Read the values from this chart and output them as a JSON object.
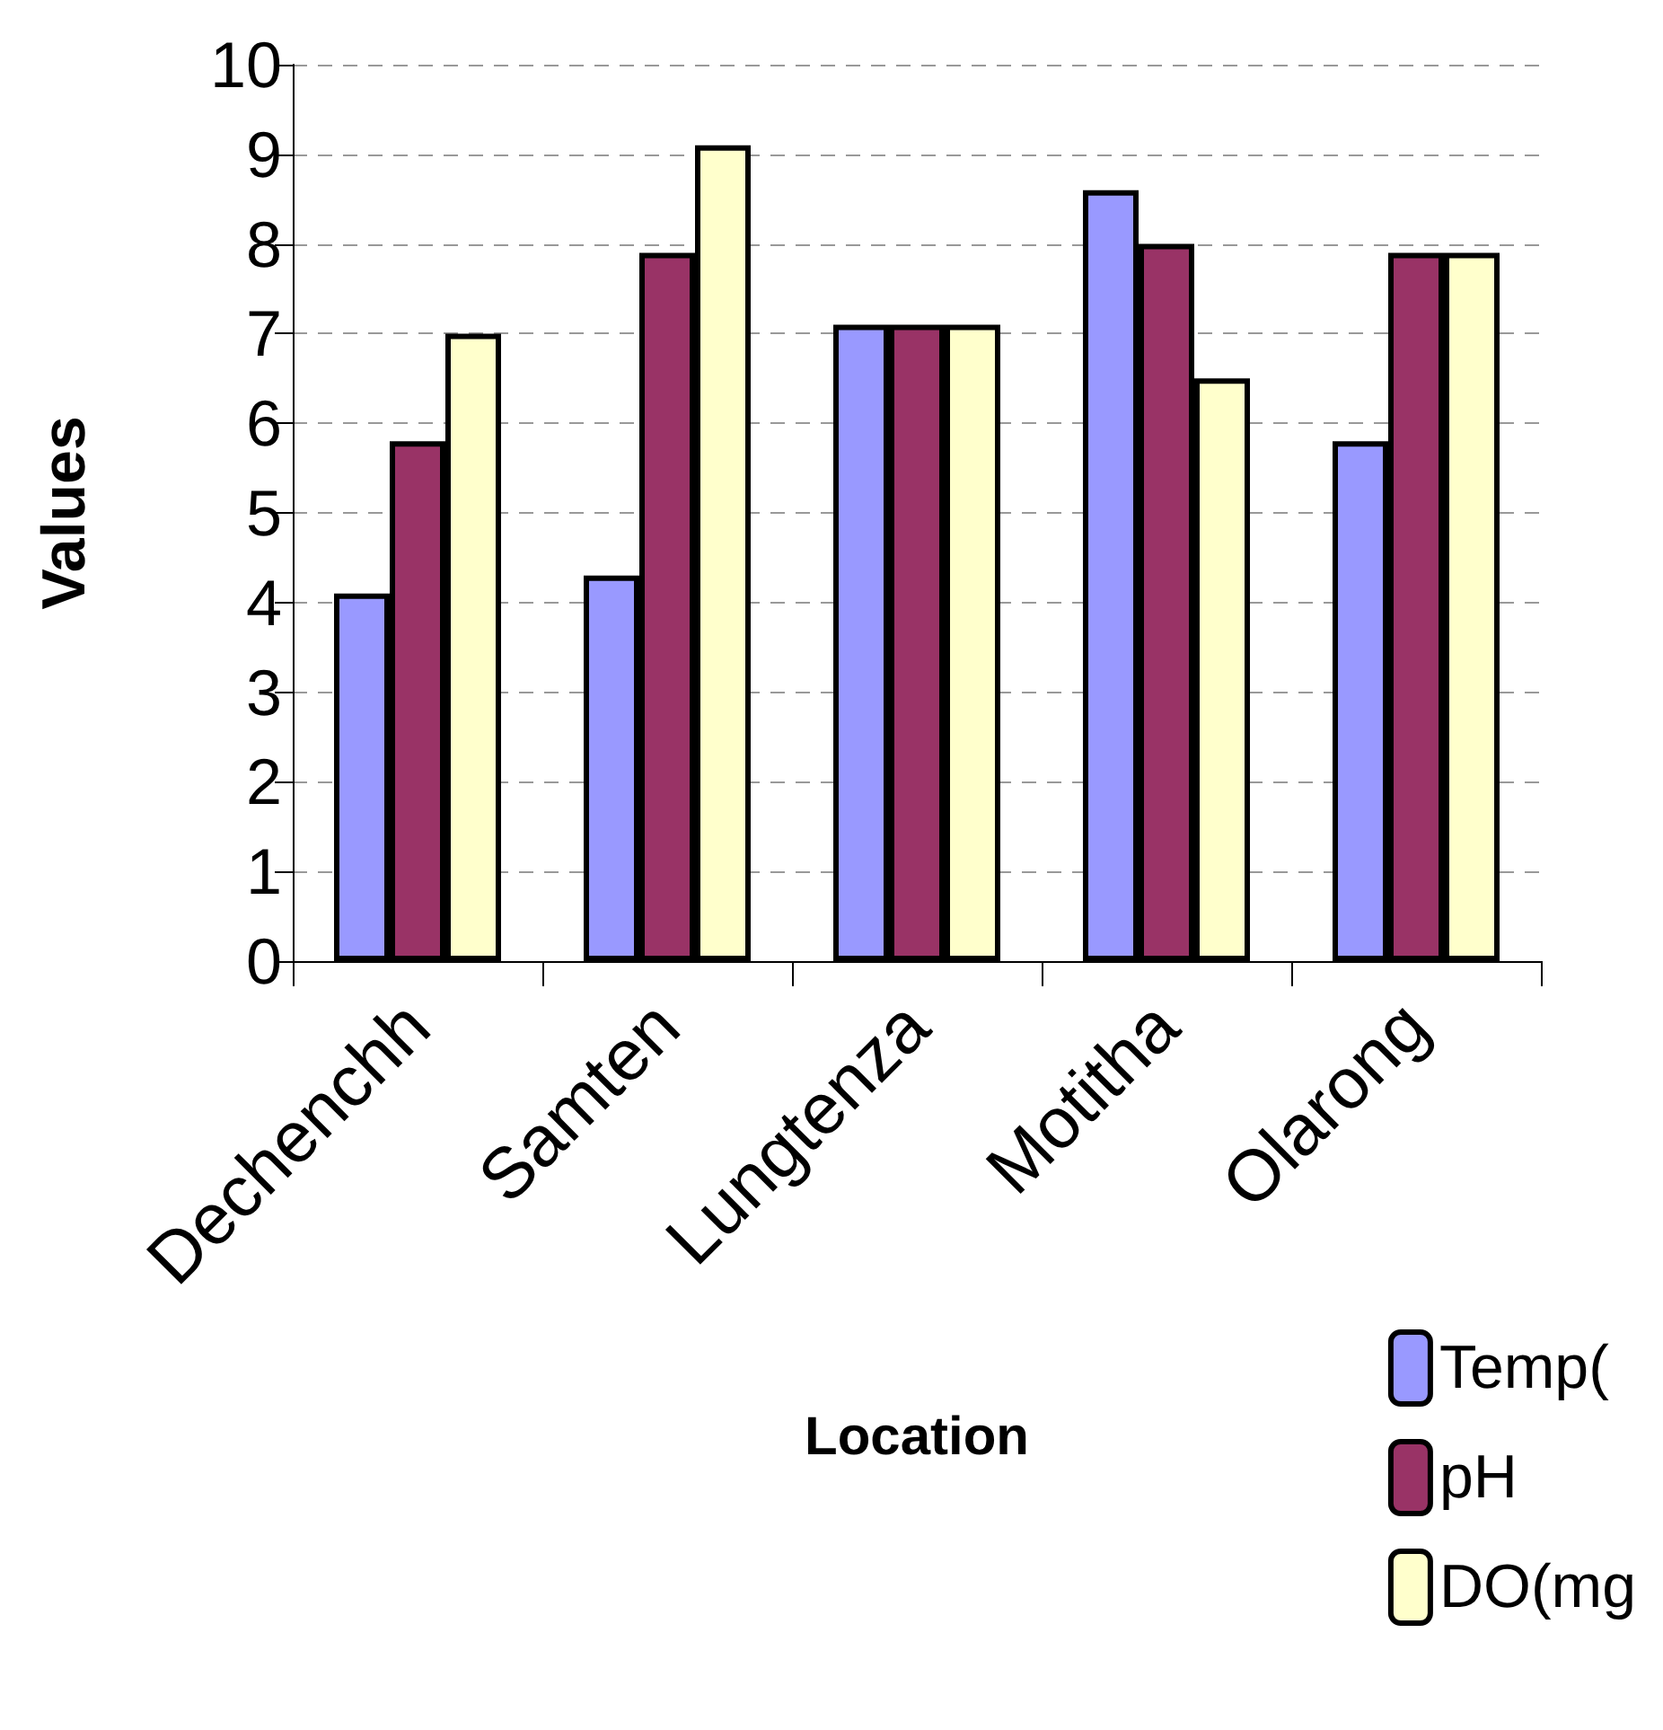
{
  "chart_data": {
    "type": "bar",
    "xlabel": "Location",
    "ylabel": "Values",
    "categories": [
      "Dechenchh",
      "Samten",
      "Lungtenza",
      "Motitha",
      "Olarong"
    ],
    "series": [
      {
        "name": "Temp(",
        "color": "#9999ff",
        "values": [
          4.1,
          4.3,
          7.1,
          8.6,
          5.8
        ]
      },
      {
        "name": "pH",
        "color": "#993366",
        "values": [
          5.8,
          7.9,
          7.1,
          8.0,
          7.9
        ]
      },
      {
        "name": "DO(mg",
        "color": "#ffffcc",
        "values": [
          7.0,
          9.1,
          7.1,
          6.5,
          7.9
        ]
      }
    ],
    "ylim": [
      0,
      10
    ],
    "yticks": [
      0,
      1,
      2,
      3,
      4,
      5,
      6,
      7,
      8,
      9,
      10
    ],
    "grid": "y",
    "legend": "bottom right"
  }
}
